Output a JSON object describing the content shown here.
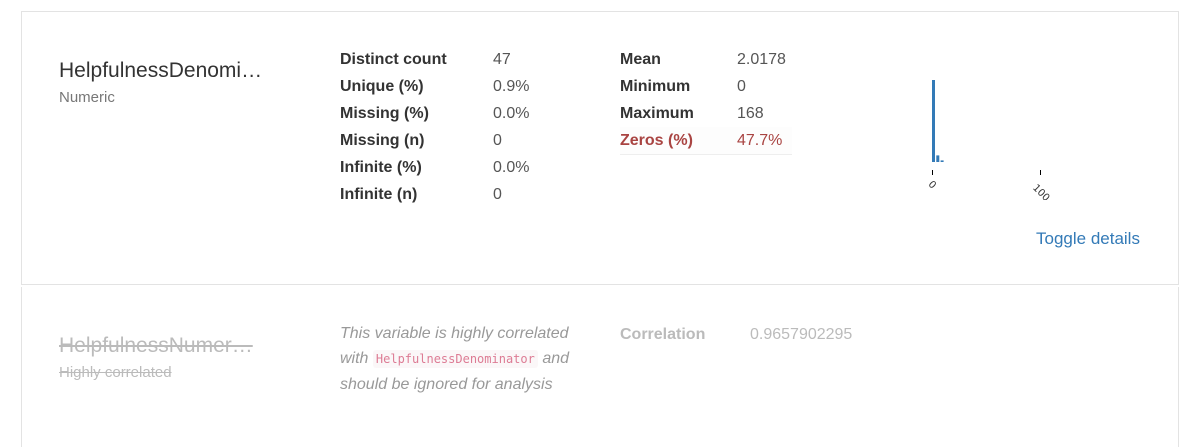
{
  "variable": {
    "name": "HelpfulnessDenomi…",
    "type": "Numeric",
    "stats_left": [
      {
        "label": "Distinct count",
        "value": "47"
      },
      {
        "label": "Unique (%)",
        "value": "0.9%"
      },
      {
        "label": "Missing (%)",
        "value": "0.0%"
      },
      {
        "label": "Missing (n)",
        "value": "0"
      },
      {
        "label": "Infinite (%)",
        "value": "0.0%"
      },
      {
        "label": "Infinite (n)",
        "value": "0"
      }
    ],
    "stats_right": [
      {
        "label": "Mean",
        "value": "2.0178"
      },
      {
        "label": "Minimum",
        "value": "0"
      },
      {
        "label": "Maximum",
        "value": "168"
      },
      {
        "label": "Zeros (%)",
        "value": "47.7%"
      }
    ],
    "toggle_label": "Toggle details"
  },
  "chart_data": {
    "type": "bar",
    "title": "",
    "x": [
      0,
      4,
      8
    ],
    "values": [
      100,
      8,
      2
    ],
    "xlim": [
      0,
      168
    ],
    "xticks": [
      "0",
      "100"
    ],
    "color": "#337ab7"
  },
  "ignored_variable": {
    "name": "HelpfulnessNumer…",
    "status": "Highly correlated",
    "note_prefix": "This variable is highly correlated with",
    "note_code": "HelpfulnessDenominator",
    "note_suffix": "and should be ignored for analysis",
    "correlation_label": "Correlation",
    "correlation_value": "0.9657902295"
  }
}
